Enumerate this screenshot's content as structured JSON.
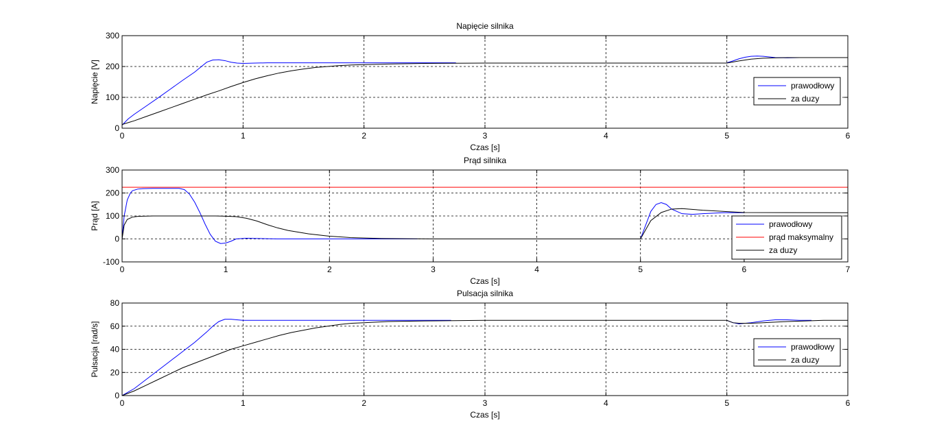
{
  "chart_data": [
    {
      "type": "line",
      "title": "Napięcie silnika",
      "xlabel": "Czas [s]",
      "ylabel": "Napięcie [V]",
      "xlim": [
        0,
        6
      ],
      "ylim": [
        0,
        300
      ],
      "xticks": [
        0,
        1,
        2,
        3,
        4,
        5,
        6
      ],
      "yticks": [
        0,
        100,
        200,
        300
      ],
      "grid": true,
      "legend_position": "right",
      "series": [
        {
          "name": "prawodłowy",
          "color": "#0000ff",
          "x": [
            0,
            0.05,
            0.1,
            0.2,
            0.3,
            0.4,
            0.5,
            0.6,
            0.65,
            0.7,
            0.75,
            0.8,
            0.85,
            0.9,
            0.95,
            1.0,
            1.1,
            1.2,
            1.5,
            2.0,
            2.5,
            2.76
          ],
          "y": [
            10,
            30,
            45,
            72,
            99,
            127,
            155,
            182,
            198,
            214,
            221,
            222,
            219,
            214,
            211,
            210,
            211,
            212,
            212,
            212,
            212,
            212
          ]
        },
        {
          "name": "prawodłowy",
          "color": "#0000ff",
          "x": [
            5.0,
            5.05,
            5.1,
            5.15,
            5.2,
            5.25,
            5.3,
            5.35,
            5.4,
            5.5,
            5.6,
            5.7
          ],
          "y": [
            212,
            218,
            225,
            230,
            233,
            234,
            233,
            231,
            229,
            228,
            229,
            229
          ]
        },
        {
          "name": "za duzy",
          "color": "#000000",
          "x": [
            0,
            0.05,
            0.1,
            0.2,
            0.3,
            0.4,
            0.5,
            0.6,
            0.7,
            0.8,
            0.9,
            1.0,
            1.1,
            1.2,
            1.3,
            1.4,
            1.5,
            1.6,
            1.7,
            1.8,
            1.9,
            2.0,
            2.2,
            2.5,
            3.0,
            4.0,
            5.0,
            5.1,
            5.2,
            5.3,
            5.5,
            5.8,
            6.0
          ],
          "y": [
            12,
            18,
            24,
            38,
            52,
            66,
            80,
            94,
            108,
            121,
            135,
            148,
            160,
            170,
            179,
            186,
            192,
            197,
            200,
            203,
            205,
            206,
            208,
            210,
            211,
            211,
            211,
            218,
            224,
            227,
            229,
            229,
            229
          ]
        }
      ],
      "legend": [
        "prawodłowy",
        "za duzy"
      ]
    },
    {
      "type": "line",
      "title": "Prąd silnika",
      "xlabel": "Czas [s]",
      "ylabel": "Prąd [A]",
      "xlim": [
        0,
        7
      ],
      "ylim": [
        -100,
        300
      ],
      "xticks": [
        0,
        1,
        2,
        3,
        4,
        5,
        6,
        7
      ],
      "yticks": [
        -100,
        0,
        100,
        200,
        300
      ],
      "grid": true,
      "legend_position": "right",
      "series": [
        {
          "name": "prawodłowy",
          "color": "#0000ff",
          "x": [
            0,
            0.02,
            0.05,
            0.08,
            0.1,
            0.15,
            0.2,
            0.3,
            0.4,
            0.5,
            0.55,
            0.6,
            0.65,
            0.7,
            0.75,
            0.8,
            0.85,
            0.9,
            0.95,
            1.0,
            1.05,
            1.1,
            1.2,
            1.3,
            1.5,
            2.0,
            2.5,
            2.85
          ],
          "y": [
            0,
            100,
            170,
            200,
            210,
            217,
            219,
            220,
            220,
            220,
            220,
            215,
            195,
            160,
            115,
            65,
            20,
            -10,
            -20,
            -18,
            -10,
            0,
            3,
            2,
            0,
            0,
            0,
            0
          ]
        },
        {
          "name": "prawodłowy",
          "color": "#0000ff",
          "x": [
            5.0,
            5.05,
            5.1,
            5.15,
            5.2,
            5.25,
            5.3,
            5.4,
            5.5,
            5.6,
            5.8,
            6.0
          ],
          "y": [
            0,
            60,
            120,
            150,
            158,
            150,
            130,
            110,
            107,
            110,
            114,
            114
          ]
        },
        {
          "name": "prąd maksymalny",
          "color": "#ff0000",
          "x": [
            0,
            7
          ],
          "y": [
            225,
            225
          ]
        },
        {
          "name": "za duzy",
          "color": "#000000",
          "x": [
            0,
            0.02,
            0.05,
            0.1,
            0.15,
            0.2,
            0.3,
            0.5,
            0.7,
            0.9,
            1.0,
            1.1,
            1.2,
            1.3,
            1.4,
            1.5,
            1.6,
            1.8,
            2.0,
            2.2,
            2.5,
            3.0,
            4.0,
            5.0,
            5.05,
            5.1,
            5.2,
            5.3,
            5.4,
            5.6,
            6.0,
            7.0
          ],
          "y": [
            0,
            60,
            85,
            95,
            98,
            99,
            100,
            100,
            100,
            100,
            99,
            97,
            90,
            78,
            62,
            48,
            37,
            22,
            12,
            6,
            2,
            0,
            0,
            0,
            40,
            80,
            115,
            130,
            132,
            125,
            115,
            114
          ]
        }
      ],
      "legend": [
        "prawodłowy",
        "prąd maksymalny",
        "za duzy"
      ]
    },
    {
      "type": "line",
      "title": "Pulsacja silnika",
      "xlabel": "Czas [s]",
      "ylabel": "Pulsacja [rad/s]",
      "xlim": [
        0,
        6
      ],
      "ylim": [
        0,
        80
      ],
      "xticks": [
        0,
        1,
        2,
        3,
        4,
        5,
        6
      ],
      "yticks": [
        0,
        20,
        40,
        60,
        80
      ],
      "grid": true,
      "legend_position": "right",
      "series": [
        {
          "name": "prawodłowy",
          "color": "#0000ff",
          "x": [
            0,
            0.1,
            0.2,
            0.3,
            0.4,
            0.5,
            0.6,
            0.7,
            0.75,
            0.8,
            0.85,
            0.9,
            0.95,
            1.0,
            1.2,
            1.5,
            2.0,
            2.5,
            2.72
          ],
          "y": [
            0,
            6,
            14,
            22,
            30,
            38,
            46,
            55,
            60,
            64,
            66,
            66,
            65.5,
            65,
            65,
            65,
            65,
            65,
            65
          ]
        },
        {
          "name": "prawodłowy",
          "color": "#0000ff",
          "x": [
            5.0,
            5.05,
            5.1,
            5.2,
            5.3,
            5.4,
            5.5,
            5.6,
            5.7
          ],
          "y": [
            65,
            63,
            62,
            63,
            64.5,
            65.5,
            65.5,
            65,
            65
          ]
        },
        {
          "name": "za duzy",
          "color": "#000000",
          "x": [
            0,
            0.1,
            0.2,
            0.3,
            0.4,
            0.5,
            0.6,
            0.7,
            0.8,
            0.9,
            1.0,
            1.1,
            1.2,
            1.3,
            1.4,
            1.5,
            1.6,
            1.7,
            1.8,
            1.9,
            2.0,
            2.2,
            2.5,
            3.0,
            4.0,
            5.0,
            5.05,
            5.1,
            5.2,
            5.3,
            5.5,
            5.8,
            6.0
          ],
          "y": [
            0,
            4,
            9,
            14,
            19,
            24,
            28,
            32,
            36,
            40,
            43,
            46,
            49,
            52,
            54.5,
            56.5,
            58.5,
            60,
            61.5,
            62.5,
            63,
            64,
            64.5,
            65,
            65,
            65,
            63,
            62.5,
            62.5,
            63,
            64,
            65,
            65
          ]
        }
      ],
      "legend": [
        "prawodłowy",
        "za duzy"
      ]
    }
  ]
}
